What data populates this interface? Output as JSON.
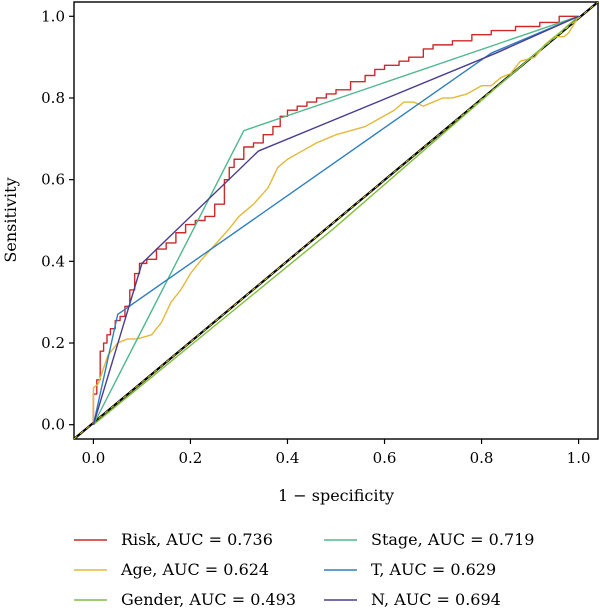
{
  "chart_data": {
    "type": "line",
    "xlabel": "1 − specificity",
    "ylabel": "Sensitivity",
    "xlim": [
      -0.04,
      1.04
    ],
    "ylim": [
      -0.035,
      1.035
    ],
    "x_ticks": [
      "0.0",
      "0.2",
      "0.4",
      "0.6",
      "0.8",
      "1.0"
    ],
    "y_ticks": [
      "0.0",
      "0.2",
      "0.4",
      "0.6",
      "0.8",
      "1.0"
    ],
    "grid": false,
    "legend_position": "bottom",
    "reference_line": {
      "from": [
        -0.04,
        -0.035
      ],
      "to": [
        1.04,
        1.035
      ],
      "color": "#000000",
      "dashed_color": "#f0e040"
    },
    "series": [
      {
        "name": "Risk, AUC = 0.736",
        "color": "#cc2a2a",
        "x": [
          0,
          0,
          0.007,
          0.007,
          0.014,
          0.014,
          0.021,
          0.021,
          0.028,
          0.028,
          0.035,
          0.035,
          0.045,
          0.045,
          0.055,
          0.055,
          0.065,
          0.065,
          0.075,
          0.075,
          0.085,
          0.085,
          0.095,
          0.095,
          0.11,
          0.11,
          0.13,
          0.13,
          0.15,
          0.15,
          0.17,
          0.17,
          0.19,
          0.19,
          0.21,
          0.21,
          0.23,
          0.23,
          0.25,
          0.25,
          0.27,
          0.27,
          0.28,
          0.28,
          0.29,
          0.29,
          0.31,
          0.31,
          0.33,
          0.33,
          0.35,
          0.35,
          0.37,
          0.37,
          0.385,
          0.385,
          0.4,
          0.4,
          0.42,
          0.42,
          0.44,
          0.44,
          0.46,
          0.46,
          0.48,
          0.48,
          0.5,
          0.5,
          0.53,
          0.53,
          0.56,
          0.56,
          0.58,
          0.58,
          0.6,
          0.6,
          0.63,
          0.63,
          0.65,
          0.65,
          0.68,
          0.68,
          0.7,
          0.7,
          0.74,
          0.74,
          0.78,
          0.78,
          0.82,
          0.82,
          0.87,
          0.87,
          0.92,
          0.92,
          0.96,
          0.96,
          1.0
        ],
        "y": [
          0,
          0.075,
          0.075,
          0.11,
          0.11,
          0.18,
          0.18,
          0.2,
          0.2,
          0.22,
          0.22,
          0.235,
          0.235,
          0.255,
          0.255,
          0.265,
          0.265,
          0.29,
          0.29,
          0.33,
          0.33,
          0.37,
          0.37,
          0.395,
          0.395,
          0.405,
          0.405,
          0.43,
          0.43,
          0.445,
          0.445,
          0.47,
          0.47,
          0.49,
          0.49,
          0.5,
          0.5,
          0.51,
          0.51,
          0.54,
          0.54,
          0.6,
          0.6,
          0.63,
          0.63,
          0.65,
          0.65,
          0.68,
          0.68,
          0.69,
          0.69,
          0.71,
          0.71,
          0.73,
          0.73,
          0.755,
          0.755,
          0.77,
          0.77,
          0.78,
          0.78,
          0.79,
          0.79,
          0.8,
          0.8,
          0.81,
          0.81,
          0.82,
          0.82,
          0.84,
          0.84,
          0.855,
          0.855,
          0.87,
          0.87,
          0.88,
          0.88,
          0.89,
          0.89,
          0.9,
          0.9,
          0.92,
          0.92,
          0.93,
          0.93,
          0.94,
          0.94,
          0.955,
          0.955,
          0.965,
          0.965,
          0.975,
          0.975,
          0.985,
          0.985,
          1.0,
          1.0
        ]
      },
      {
        "name": "Age, AUC = 0.624",
        "color": "#e3b93a",
        "x": [
          0,
          0,
          0.01,
          0.03,
          0.05,
          0.07,
          0.09,
          0.12,
          0.14,
          0.16,
          0.18,
          0.2,
          0.22,
          0.25,
          0.28,
          0.3,
          0.33,
          0.36,
          0.38,
          0.4,
          0.43,
          0.46,
          0.48,
          0.5,
          0.53,
          0.56,
          0.59,
          0.62,
          0.64,
          0.66,
          0.68,
          0.7,
          0.72,
          0.74,
          0.77,
          0.8,
          0.82,
          0.84,
          0.86,
          0.88,
          0.91,
          0.93,
          0.95,
          0.97,
          0.98,
          1.0
        ],
        "y": [
          0,
          0.09,
          0.1,
          0.17,
          0.2,
          0.21,
          0.21,
          0.22,
          0.25,
          0.3,
          0.33,
          0.37,
          0.4,
          0.44,
          0.48,
          0.51,
          0.54,
          0.58,
          0.63,
          0.65,
          0.67,
          0.69,
          0.7,
          0.71,
          0.72,
          0.73,
          0.75,
          0.77,
          0.79,
          0.79,
          0.78,
          0.79,
          0.8,
          0.8,
          0.81,
          0.83,
          0.83,
          0.85,
          0.86,
          0.89,
          0.9,
          0.93,
          0.95,
          0.95,
          0.96,
          1.0
        ]
      },
      {
        "name": "Gender, AUC = 0.493",
        "color": "#7fbf3f",
        "x": [
          0,
          0.49,
          1.0
        ],
        "y": [
          0,
          0.475,
          1.0
        ]
      },
      {
        "name": "Stage, AUC = 0.719",
        "color": "#4fb88c",
        "x": [
          0,
          0.31,
          1.0
        ],
        "y": [
          0,
          0.72,
          1.0
        ]
      },
      {
        "name": "T, AUC = 0.629",
        "color": "#2f7fbf",
        "x": [
          0,
          0.05,
          0.82,
          1.0
        ],
        "y": [
          0,
          0.27,
          0.91,
          1.0
        ]
      },
      {
        "name": "N, AUC = 0.694",
        "color": "#4b3d8f",
        "x": [
          0,
          0.1,
          0.34,
          0.83,
          1.0
        ],
        "y": [
          0,
          0.395,
          0.67,
          0.91,
          1.0
        ]
      }
    ]
  }
}
